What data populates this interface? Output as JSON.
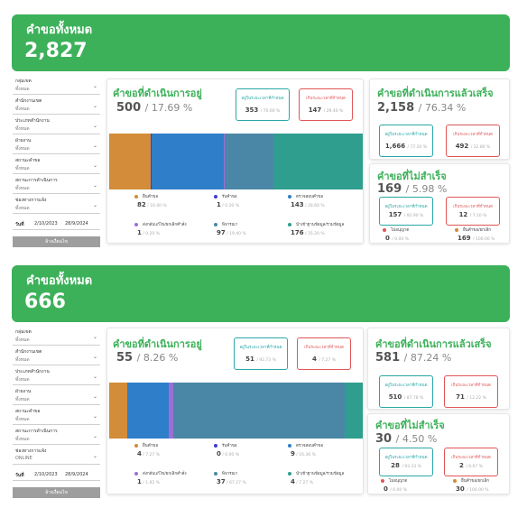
{
  "colors": {
    "green": "#3db15a",
    "teal": "#2aa7a7",
    "red": "#e05656"
  },
  "filters": {
    "labels": [
      "กลุ่มเขต",
      "สำนักงานเขต",
      "ประเภทสำนักงาน",
      "ฝ่ายงาน",
      "สถานะคำขอ",
      "สถานะการดำเนินการ",
      "ช่องทางการแจ้ง"
    ],
    "values": [
      "ทั้งหมด",
      "ทั้งหมด",
      "ทั้งหมด",
      "ทั้งหมด",
      "ทั้งหมด",
      "ทั้งหมด",
      "ทั้งหมด"
    ],
    "date_label": "วันที่",
    "date_from": "2/10/2023",
    "date_to": "28/9/2024",
    "clear_label": "ล้างเงื่อนไข"
  },
  "dashboards": [
    {
      "total_title": "คำขอทั้งหมด",
      "total": "2,827",
      "channel": "ทั้งหมด",
      "in_progress": {
        "title": "คำขอที่ดำเนินการอยู่",
        "count": "500",
        "pct": "/ 17.69 %",
        "within": {
          "label": "อยู่ในระยะเวลาที่กำหนด",
          "value": "353",
          "pct": "/ 70.60 %"
        },
        "over": {
          "label": "เกินระยะเวลาที่กำหนด",
          "value": "147",
          "pct": "/ 29.40 %"
        },
        "chart_data": {
          "type": "bar",
          "categories": [
            "ยื่นคำขอ",
            "รับคำขอ",
            "ตรวจสอบคำขอ",
            "ส่งกลับแก้ไข/ยกเลิกคำสั่ง",
            "พิจารณา",
            "นำเข้าฐานข้อมูล/รวมข้อมูล"
          ],
          "values": [
            82,
            1,
            143,
            1,
            97,
            176
          ],
          "pcts": [
            "/ 16.40 %",
            "/ 0.20 %",
            "/ 28.60 %",
            "/ 0.20 %",
            "/ 19.40 %",
            "/ 35.20 %"
          ],
          "colors": [
            "#d28c3a",
            "#3d3dcc",
            "#2e7ec9",
            "#9b6fd6",
            "#4a87a7",
            "#2f9e8e"
          ]
        }
      },
      "done": {
        "title": "คำขอที่ดำเนินการแล้วเสร็จ",
        "count": "2,158",
        "pct": "/ 76.34 %",
        "within": {
          "label": "อยู่ในระยะเวลาที่กำหนด",
          "value": "1,666",
          "pct": "/ 77.20 %"
        },
        "over": {
          "label": "เกินระยะเวลาที่กำหนด",
          "value": "492",
          "pct": "/ 22.80 %"
        }
      },
      "failed": {
        "title": "คำขอที่ไม่สำเร็จ",
        "count": "169",
        "pct": "/ 5.98 %",
        "within": {
          "label": "อยู่ในระยะเวลาที่กำหนด",
          "value": "157",
          "pct": "/ 92.90 %"
        },
        "over": {
          "label": "เกินระยะเวลาที่กำหนด",
          "value": "12",
          "pct": "/ 7.10 %"
        },
        "legend": [
          {
            "label": "ไม่อนุญาต",
            "value": "0",
            "pct": "/ 0.00 %",
            "color": "#e05656"
          },
          {
            "label": "ยื่นคำขอ/ยกเลิก",
            "value": "169",
            "pct": "/ 100.00 %",
            "color": "#d28c3a"
          }
        ]
      }
    },
    {
      "total_title": "คำขอทั้งหมด",
      "total": "666",
      "channel": "ONLINE",
      "in_progress": {
        "title": "คำขอที่ดำเนินการอยู่",
        "count": "55",
        "pct": "/ 8.26 %",
        "within": {
          "label": "อยู่ในระยะเวลาที่กำหนด",
          "value": "51",
          "pct": "/ 92.73 %"
        },
        "over": {
          "label": "เกินระยะเวลาที่กำหนด",
          "value": "4",
          "pct": "/ 7.27 %"
        },
        "chart_data": {
          "type": "bar",
          "categories": [
            "ยื่นคำขอ",
            "รับคำขอ",
            "ตรวจสอบคำขอ",
            "ส่งกลับแก้ไข/ยกเลิกคำสั่ง",
            "พิจารณา",
            "นำเข้าฐานข้อมูล/รวมข้อมูล"
          ],
          "values": [
            4,
            0,
            9,
            1,
            37,
            4
          ],
          "pcts": [
            "/ 7.27 %",
            "/ 0.00 %",
            "/ 16.36 %",
            "/ 1.82 %",
            "/ 67.27 %",
            "/ 7.27 %"
          ],
          "colors": [
            "#d28c3a",
            "#3d3dcc",
            "#2e7ec9",
            "#9b6fd6",
            "#4a87a7",
            "#2f9e8e"
          ]
        }
      },
      "done": {
        "title": "คำขอที่ดำเนินการแล้วเสร็จ",
        "count": "581",
        "pct": "/ 87.24 %",
        "within": {
          "label": "อยู่ในระยะเวลาที่กำหนด",
          "value": "510",
          "pct": "/ 87.78 %"
        },
        "over": {
          "label": "เกินระยะเวลาที่กำหนด",
          "value": "71",
          "pct": "/ 12.22 %"
        }
      },
      "failed": {
        "title": "คำขอที่ไม่สำเร็จ",
        "count": "30",
        "pct": "/ 4.50 %",
        "within": {
          "label": "อยู่ในระยะเวลาที่กำหนด",
          "value": "28",
          "pct": "/ 93.33 %"
        },
        "over": {
          "label": "เกินระยะเวลาที่กำหนด",
          "value": "2",
          "pct": "/ 6.67 %"
        },
        "legend": [
          {
            "label": "ไม่อนุญาต",
            "value": "0",
            "pct": "/ 0.00 %",
            "color": "#e05656"
          },
          {
            "label": "ยื่นคำขอ/ยกเลิก",
            "value": "30",
            "pct": "/ 100.00 %",
            "color": "#d28c3a"
          }
        ]
      }
    }
  ]
}
